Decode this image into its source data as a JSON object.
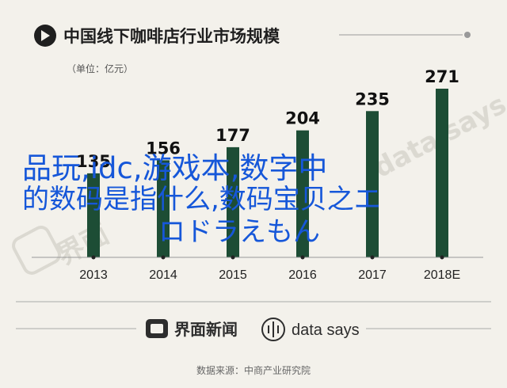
{
  "header": {
    "title": "中国线下咖啡店行业市场规模",
    "unit": "（单位：亿元）"
  },
  "overlay": {
    "line1": "品玩,idc,游戏本,数字中",
    "line2": "的数码是指什么,数码宝贝之エ",
    "line3": "ロドラえもん"
  },
  "footer": {
    "brand_cn": "界面新闻",
    "brand_en": "data says",
    "source": "数据来源：中商产业研究院"
  },
  "watermark": {
    "cn": "界面",
    "en": "data says"
  },
  "colors": {
    "bar": "#1d4d35",
    "background": "#f3f1eb",
    "overlay_text": "#1657d9"
  },
  "chart_data": {
    "type": "bar",
    "title": "中国线下咖啡店行业市场规模",
    "unit": "亿元",
    "categories": [
      "2013",
      "2014",
      "2015",
      "2016",
      "2017",
      "2018E"
    ],
    "values": [
      135,
      156,
      177,
      204,
      235,
      271
    ],
    "value_labels": [
      "135",
      "156",
      "177",
      "204",
      "235",
      "271"
    ],
    "ylim": [
      0,
      271
    ],
    "grid": false,
    "legend": "none"
  }
}
